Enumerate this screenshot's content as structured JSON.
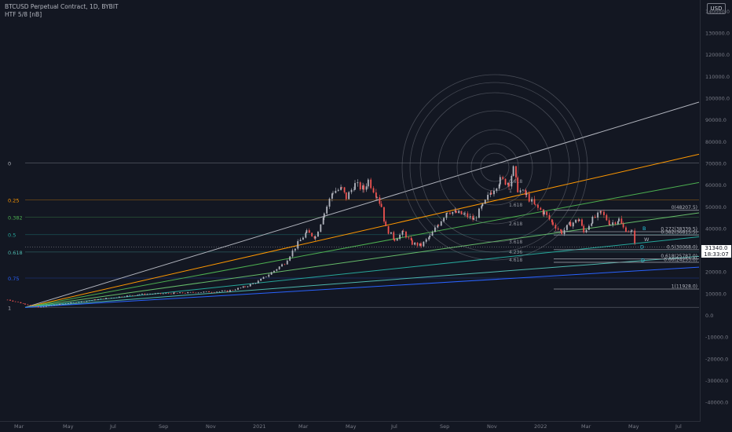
{
  "header": {
    "title": "BTCUSD Perpetual Contract, 1D, BYBIT",
    "subtitle": "HTF 5/8 [nB]",
    "currency": "USD"
  },
  "price_box": {
    "price": "31340.0",
    "countdown": "18:33:07"
  },
  "fib_levels_left": [
    {
      "label": "0",
      "color": "#b2b5be",
      "price": 70000
    },
    {
      "label": "0.25",
      "color": "#ff9800",
      "price": 53000
    },
    {
      "label": "0.382",
      "color": "#4caf50",
      "price": 45000
    },
    {
      "label": "0.5",
      "color": "#26a69a",
      "price": 37000
    },
    {
      "label": "0.618",
      "color": "#4db6ac",
      "price": 29000
    },
    {
      "label": "0.75",
      "color": "#2962ff",
      "price": 17000
    },
    {
      "label": "1",
      "color": "#b2b5be",
      "price": 3500
    }
  ],
  "fib_levels_right": [
    {
      "label": "0(48207.5)",
      "price": 48207.5
    },
    {
      "label": "0.272(38339.5)",
      "price": 38339.5
    },
    {
      "label": "0.382(36815.5)",
      "price": 36815.5
    },
    {
      "label": "0.5(30068.0)",
      "price": 30068.0
    },
    {
      "label": "0.618(25787.0)",
      "price": 25787.0
    },
    {
      "label": "0.66(24253.0)",
      "price": 24253.0
    },
    {
      "label": "1(11928.0)",
      "price": 11928.0
    }
  ],
  "circle_labels": [
    "0.618",
    "1",
    "1.618",
    "2.618",
    "3.618",
    "4.236",
    "4.618"
  ],
  "wave_labels": [
    "B",
    "W",
    "D",
    "D"
  ],
  "chart_data": {
    "type": "candlestick",
    "y_ticks": [
      "140000.0",
      "130000.0",
      "120000.0",
      "110000.0",
      "100000.0",
      "90000.0",
      "80000.0",
      "70000.0",
      "60000.0",
      "50000.0",
      "40000.0",
      "30000.0",
      "20000.0",
      "10000.0",
      "0.0",
      "-10000.0",
      "-20000.0",
      "-30000.0",
      "-40000.0"
    ],
    "y_tick_values": [
      140000,
      130000,
      120000,
      110000,
      100000,
      90000,
      80000,
      70000,
      60000,
      50000,
      40000,
      30000,
      20000,
      10000,
      0,
      -10000,
      -20000,
      -30000,
      -40000
    ],
    "x_ticks": [
      "Mar",
      "May",
      "Jul",
      "Sep",
      "Nov",
      "2021",
      "Mar",
      "May",
      "Jul",
      "Sep",
      "Nov",
      "2022",
      "Mar",
      "May",
      "Jul"
    ],
    "ylim": [
      -45000,
      145000
    ],
    "last_price": 31340.0,
    "price_path": [
      [
        -4,
        7000
      ],
      [
        0,
        5000
      ],
      [
        3,
        3500
      ],
      [
        8,
        5000
      ],
      [
        16,
        7000
      ],
      [
        26,
        9500
      ],
      [
        34,
        10000
      ],
      [
        40,
        10500
      ],
      [
        46,
        11000
      ],
      [
        50,
        13000
      ],
      [
        53,
        15500
      ],
      [
        56,
        19500
      ],
      [
        59,
        24000
      ],
      [
        62,
        33000
      ],
      [
        64,
        38000
      ],
      [
        66,
        36000
      ],
      [
        68,
        47000
      ],
      [
        70,
        57000
      ],
      [
        72,
        58000
      ],
      [
        73,
        54000
      ],
      [
        75,
        60000
      ],
      [
        77,
        58000
      ],
      [
        78,
        62000
      ],
      [
        80,
        55000
      ],
      [
        81,
        50000
      ],
      [
        82,
        40000
      ],
      [
        84,
        35000
      ],
      [
        86,
        38000
      ],
      [
        88,
        33000
      ],
      [
        90,
        32000
      ],
      [
        92,
        36000
      ],
      [
        94,
        42000
      ],
      [
        96,
        48000
      ],
      [
        98,
        47000
      ],
      [
        100,
        46000
      ],
      [
        102,
        44000
      ],
      [
        104,
        50000
      ],
      [
        106,
        57000
      ],
      [
        108,
        62000
      ],
      [
        110,
        61000
      ],
      [
        111,
        67000
      ],
      [
        112,
        58000
      ],
      [
        114,
        55000
      ],
      [
        116,
        50000
      ],
      [
        118,
        47000
      ],
      [
        120,
        42000
      ],
      [
        122,
        38000
      ],
      [
        124,
        42000
      ],
      [
        126,
        44000
      ],
      [
        127,
        38000
      ],
      [
        129,
        44000
      ],
      [
        131,
        47000
      ],
      [
        133,
        42000
      ],
      [
        135,
        44000
      ],
      [
        136,
        40000
      ],
      [
        138,
        38000
      ],
      [
        139,
        31000
      ]
    ]
  }
}
